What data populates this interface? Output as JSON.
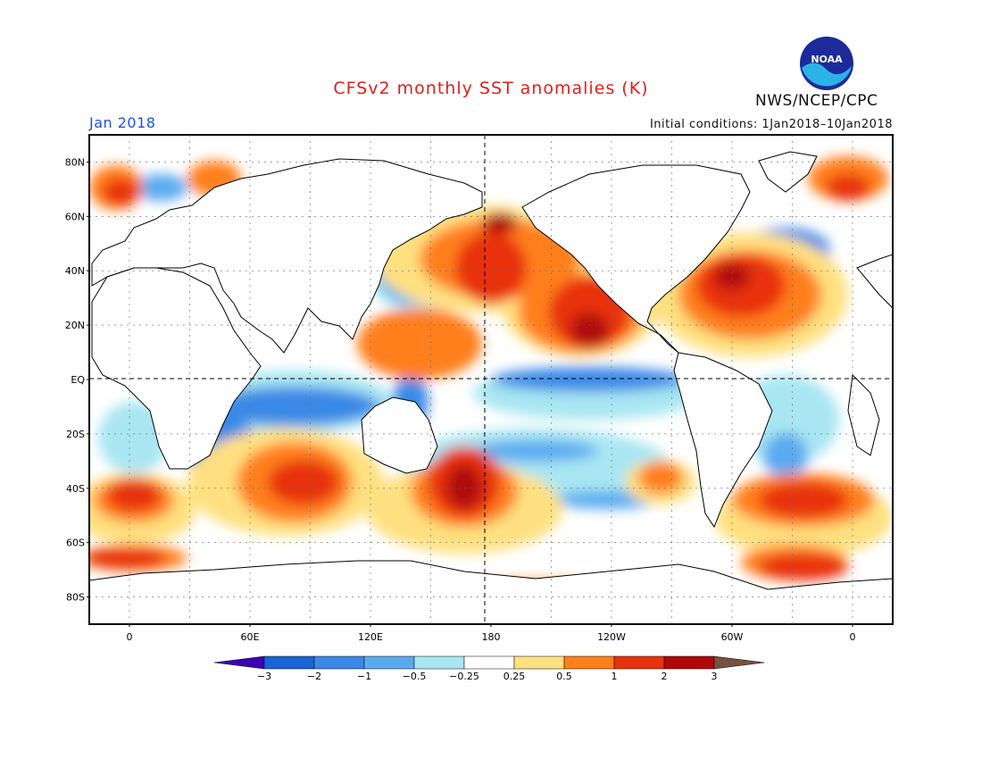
{
  "header": {
    "title": "CFSv2 monthly SST anomalies (K)",
    "credit": "NWS/NCEP/CPC",
    "month": "Jan 2018",
    "initial_conditions": "Initial conditions: 1Jan2018–10Jan2018",
    "logo_text": "NOAA"
  },
  "map": {
    "projection": "cylindrical-equidistant",
    "lon_range": [
      -20,
      380
    ],
    "lat_range": [
      -90,
      90
    ],
    "reference_lines": [
      "equator",
      "dateline"
    ],
    "lat_labels": [
      "80N",
      "60N",
      "40N",
      "20N",
      "EQ",
      "20S",
      "40S",
      "60S",
      "80S"
    ],
    "lon_labels": [
      "0",
      "60E",
      "120E",
      "180",
      "120W",
      "60W",
      "0"
    ]
  },
  "colorbar": {
    "labels": [
      "-3",
      "-2",
      "-1",
      "-0.5",
      "-0.25",
      "0.25",
      "0.5",
      "1",
      "2",
      "3"
    ],
    "colors": [
      "#3f00b5",
      "#1a63d6",
      "#3a89e6",
      "#5aaaf0",
      "#a8e6f2",
      "#ffffff",
      "#ffe080",
      "#ff7f1a",
      "#e8320e",
      "#b00808",
      "#7a5040"
    ]
  }
}
